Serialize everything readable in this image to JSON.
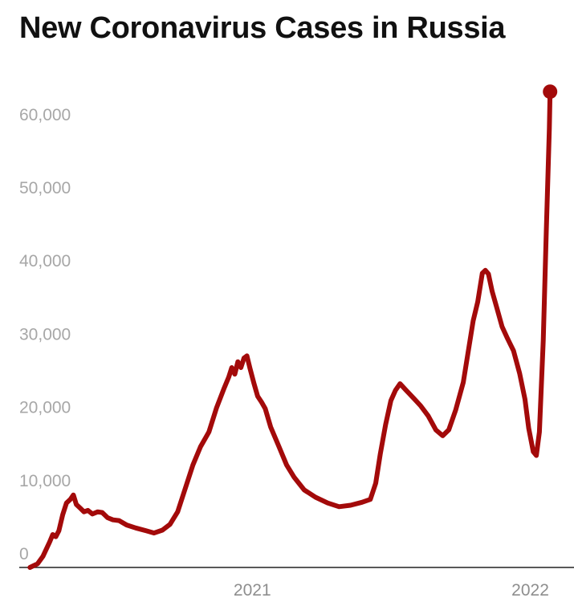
{
  "title": "New Coronavirus Cases in Russia",
  "colors": {
    "line": "#a30a0a",
    "axis": "#222222",
    "tick_text": "#a7a7a7"
  },
  "chart_data": {
    "type": "line",
    "title": "New Coronavirus Cases in Russia",
    "xlabel": "",
    "ylabel": "",
    "xlim": [
      "2020-03-01",
      "2022-01-31"
    ],
    "ylim": [
      0,
      67000
    ],
    "grid": false,
    "y_ticks": [
      {
        "value": 0,
        "label": "0"
      },
      {
        "value": 10000,
        "label": "10,000"
      },
      {
        "value": 20000,
        "label": "20,000"
      },
      {
        "value": 30000,
        "label": "30,000"
      },
      {
        "value": 40000,
        "label": "40,000"
      },
      {
        "value": 50000,
        "label": "50,000"
      },
      {
        "value": 60000,
        "label": "60,000"
      }
    ],
    "x_ticks": [
      {
        "value": "2021-01-01",
        "label": "2021"
      },
      {
        "value": "2022-01-01",
        "label": "2022"
      }
    ],
    "end_marker": {
      "x": "2022-01-27",
      "y": 65000
    },
    "series": [
      {
        "points": [
          [
            "2020-03-15",
            0
          ],
          [
            "2020-03-25",
            500
          ],
          [
            "2020-04-01",
            1500
          ],
          [
            "2020-04-10",
            3500
          ],
          [
            "2020-04-14",
            4500
          ],
          [
            "2020-04-18",
            4200
          ],
          [
            "2020-04-22",
            5000
          ],
          [
            "2020-04-27",
            7200
          ],
          [
            "2020-05-02",
            8800
          ],
          [
            "2020-05-07",
            9300
          ],
          [
            "2020-05-11",
            9900
          ],
          [
            "2020-05-15",
            8600
          ],
          [
            "2020-05-20",
            8100
          ],
          [
            "2020-05-25",
            7600
          ],
          [
            "2020-05-30",
            7800
          ],
          [
            "2020-06-05",
            7300
          ],
          [
            "2020-06-12",
            7600
          ],
          [
            "2020-06-18",
            7500
          ],
          [
            "2020-06-25",
            6800
          ],
          [
            "2020-07-02",
            6500
          ],
          [
            "2020-07-10",
            6400
          ],
          [
            "2020-07-20",
            5800
          ],
          [
            "2020-08-01",
            5400
          ],
          [
            "2020-08-15",
            5000
          ],
          [
            "2020-08-25",
            4700
          ],
          [
            "2020-09-05",
            5100
          ],
          [
            "2020-09-15",
            5900
          ],
          [
            "2020-09-25",
            7600
          ],
          [
            "2020-10-05",
            10800
          ],
          [
            "2020-10-15",
            14000
          ],
          [
            "2020-10-25",
            16500
          ],
          [
            "2020-11-05",
            18500
          ],
          [
            "2020-11-15",
            21800
          ],
          [
            "2020-11-25",
            24500
          ],
          [
            "2020-12-01",
            26000
          ],
          [
            "2020-12-05",
            27300
          ],
          [
            "2020-12-09",
            26400
          ],
          [
            "2020-12-13",
            28100
          ],
          [
            "2020-12-17",
            27300
          ],
          [
            "2020-12-21",
            28600
          ],
          [
            "2020-12-25",
            28900
          ],
          [
            "2020-12-29",
            27200
          ],
          [
            "2021-01-03",
            25200
          ],
          [
            "2021-01-08",
            23400
          ],
          [
            "2021-01-13",
            22600
          ],
          [
            "2021-01-18",
            21700
          ],
          [
            "2021-01-25",
            19200
          ],
          [
            "2021-02-05",
            16500
          ],
          [
            "2021-02-15",
            14000
          ],
          [
            "2021-02-25",
            12300
          ],
          [
            "2021-03-10",
            10600
          ],
          [
            "2021-03-25",
            9600
          ],
          [
            "2021-04-10",
            8800
          ],
          [
            "2021-04-25",
            8300
          ],
          [
            "2021-05-10",
            8500
          ],
          [
            "2021-05-25",
            8900
          ],
          [
            "2021-06-05",
            9300
          ],
          [
            "2021-06-12",
            11500
          ],
          [
            "2021-06-18",
            15500
          ],
          [
            "2021-06-25",
            19500
          ],
          [
            "2021-07-02",
            22800
          ],
          [
            "2021-07-08",
            24200
          ],
          [
            "2021-07-14",
            25100
          ],
          [
            "2021-07-22",
            24200
          ],
          [
            "2021-08-01",
            23100
          ],
          [
            "2021-08-10",
            22100
          ],
          [
            "2021-08-20",
            20700
          ],
          [
            "2021-08-30",
            18800
          ],
          [
            "2021-09-08",
            18000
          ],
          [
            "2021-09-16",
            18800
          ],
          [
            "2021-09-25",
            21500
          ],
          [
            "2021-10-05",
            25300
          ],
          [
            "2021-10-12",
            29800
          ],
          [
            "2021-10-18",
            33700
          ],
          [
            "2021-10-24",
            36300
          ],
          [
            "2021-10-30",
            40200
          ],
          [
            "2021-11-03",
            40600
          ],
          [
            "2021-11-07",
            40100
          ],
          [
            "2021-11-12",
            37700
          ],
          [
            "2021-11-18",
            35500
          ],
          [
            "2021-11-25",
            32900
          ],
          [
            "2021-12-02",
            31300
          ],
          [
            "2021-12-10",
            29600
          ],
          [
            "2021-12-18",
            26500
          ],
          [
            "2021-12-25",
            23000
          ],
          [
            "2021-12-30",
            19000
          ],
          [
            "2022-01-05",
            15800
          ],
          [
            "2022-01-09",
            15300
          ],
          [
            "2022-01-13",
            18500
          ],
          [
            "2022-01-18",
            31000
          ],
          [
            "2022-01-22",
            46000
          ],
          [
            "2022-01-26",
            60000
          ],
          [
            "2022-01-27",
            65000
          ]
        ]
      }
    ]
  }
}
